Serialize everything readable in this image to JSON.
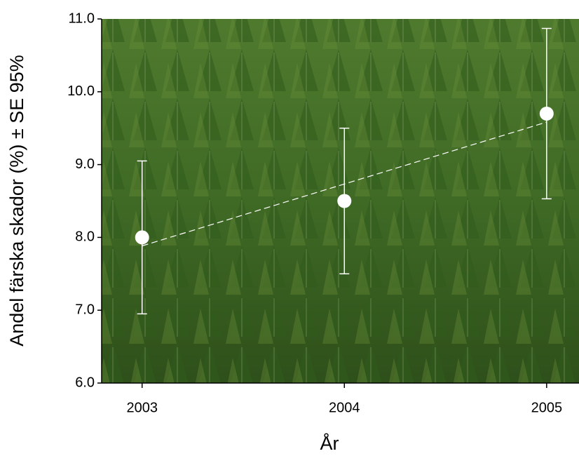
{
  "chart_data": {
    "type": "scatter",
    "x": [
      2003,
      2004,
      2005
    ],
    "values": [
      8.0,
      8.5,
      9.7
    ],
    "errors": [
      1.05,
      1.0,
      1.17
    ],
    "xlim": [
      2002.8,
      2005.16
    ],
    "xticks": [
      2003,
      2004,
      2005
    ],
    "ylim": [
      6,
      11
    ],
    "yticks": [
      {
        "value": 6,
        "label": "6.0"
      },
      {
        "value": 7,
        "label": "7.0"
      },
      {
        "value": 8,
        "label": "8.0"
      },
      {
        "value": 9,
        "label": "9.0"
      },
      {
        "value": 10,
        "label": "10.0"
      },
      {
        "value": 11,
        "label": "11.0"
      }
    ],
    "xlabel": "År",
    "ylabel": "Andel färska skador (%) ± SE 95%",
    "color": "#ffffff",
    "trendline": true
  }
}
